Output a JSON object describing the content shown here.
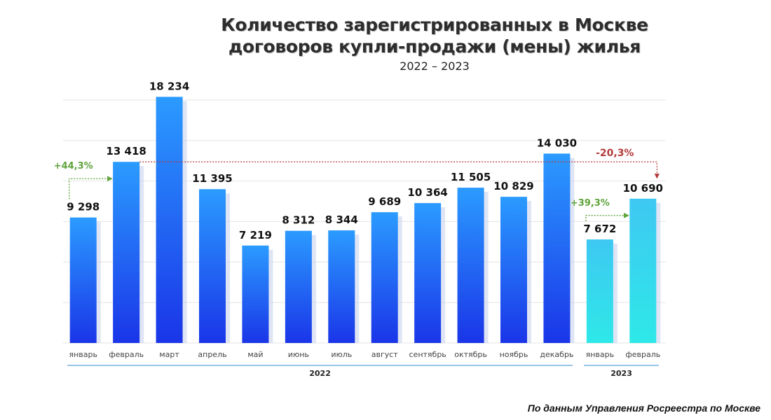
{
  "title_lines": [
    "Количество зарегистрированных в Москве",
    "договоров купли-продажи (мены) жилья"
  ],
  "subtitle": "2022 – 2023",
  "source": "По данным Управления Росреестра по Москве",
  "chart_data": {
    "type": "bar",
    "title": "Количество зарегистрированных в Москве договоров купли-продажи (мены) жилья",
    "subtitle": "2022 – 2023",
    "categories": [
      "январь",
      "февраль",
      "март",
      "апрель",
      "май",
      "июнь",
      "июль",
      "август",
      "сентябрь",
      "октябрь",
      "ноябрь",
      "декабрь",
      "январь",
      "февраль"
    ],
    "values": [
      9298,
      13418,
      18234,
      11395,
      7219,
      8312,
      8344,
      9689,
      10364,
      11505,
      10829,
      14030,
      7672,
      10690
    ],
    "value_labels": [
      "9 298",
      "13 418",
      "18 234",
      "11 395",
      "7 219",
      "8 312",
      "8 344",
      "9 689",
      "10 364",
      "11 505",
      "10 829",
      "14 030",
      "7 672",
      "10 690"
    ],
    "year_for_bar": [
      "2022",
      "2022",
      "2022",
      "2022",
      "2022",
      "2022",
      "2022",
      "2022",
      "2022",
      "2022",
      "2022",
      "2022",
      "2023",
      "2023"
    ],
    "groups": [
      {
        "label": "2022",
        "from": 0,
        "to": 11
      },
      {
        "label": "2023",
        "from": 12,
        "to": 13
      }
    ],
    "ylim": [
      0,
      21000
    ],
    "grid": true,
    "colors": {
      "bar_2022_top": "#2b9bff",
      "bar_2022_bottom": "#1a35e8",
      "bar_2023_top": "#3ec8f2",
      "bar_2023_bottom": "#2ee8e8",
      "grid": "#e4e4e4",
      "green": "#5fa33a",
      "red": "#b33a3a"
    },
    "annotations": [
      {
        "text": "+44,3%",
        "from": 0,
        "to": 1,
        "color": "green"
      },
      {
        "text": "+39,3%",
        "from": 12,
        "to": 13,
        "color": "green"
      },
      {
        "text": "-20,3%",
        "from": 1,
        "to": 13,
        "color": "red"
      }
    ]
  }
}
